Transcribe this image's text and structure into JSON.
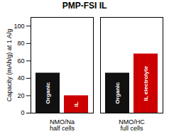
{
  "chart_data": {
    "type": "bar",
    "title": "PMP-FSI IL",
    "ylabel": "Capacity (mAh/g) at 1 A/g",
    "categories": [
      "NMO/Na\nhalf cells",
      "NMO/HC\nfull cells"
    ],
    "series": [
      {
        "name": "Organic",
        "color": "#111111",
        "values": [
          46,
          46
        ],
        "labels": [
          "Organic",
          "Organic"
        ]
      },
      {
        "name": "IL",
        "color": "#cc0000",
        "values": [
          20,
          68
        ],
        "labels": [
          "IL",
          "IL electrolyte"
        ]
      }
    ],
    "ylim": [
      0,
      110
    ],
    "yticks": [
      0,
      20,
      40,
      60,
      80,
      100
    ],
    "grid": false,
    "legend": false
  }
}
